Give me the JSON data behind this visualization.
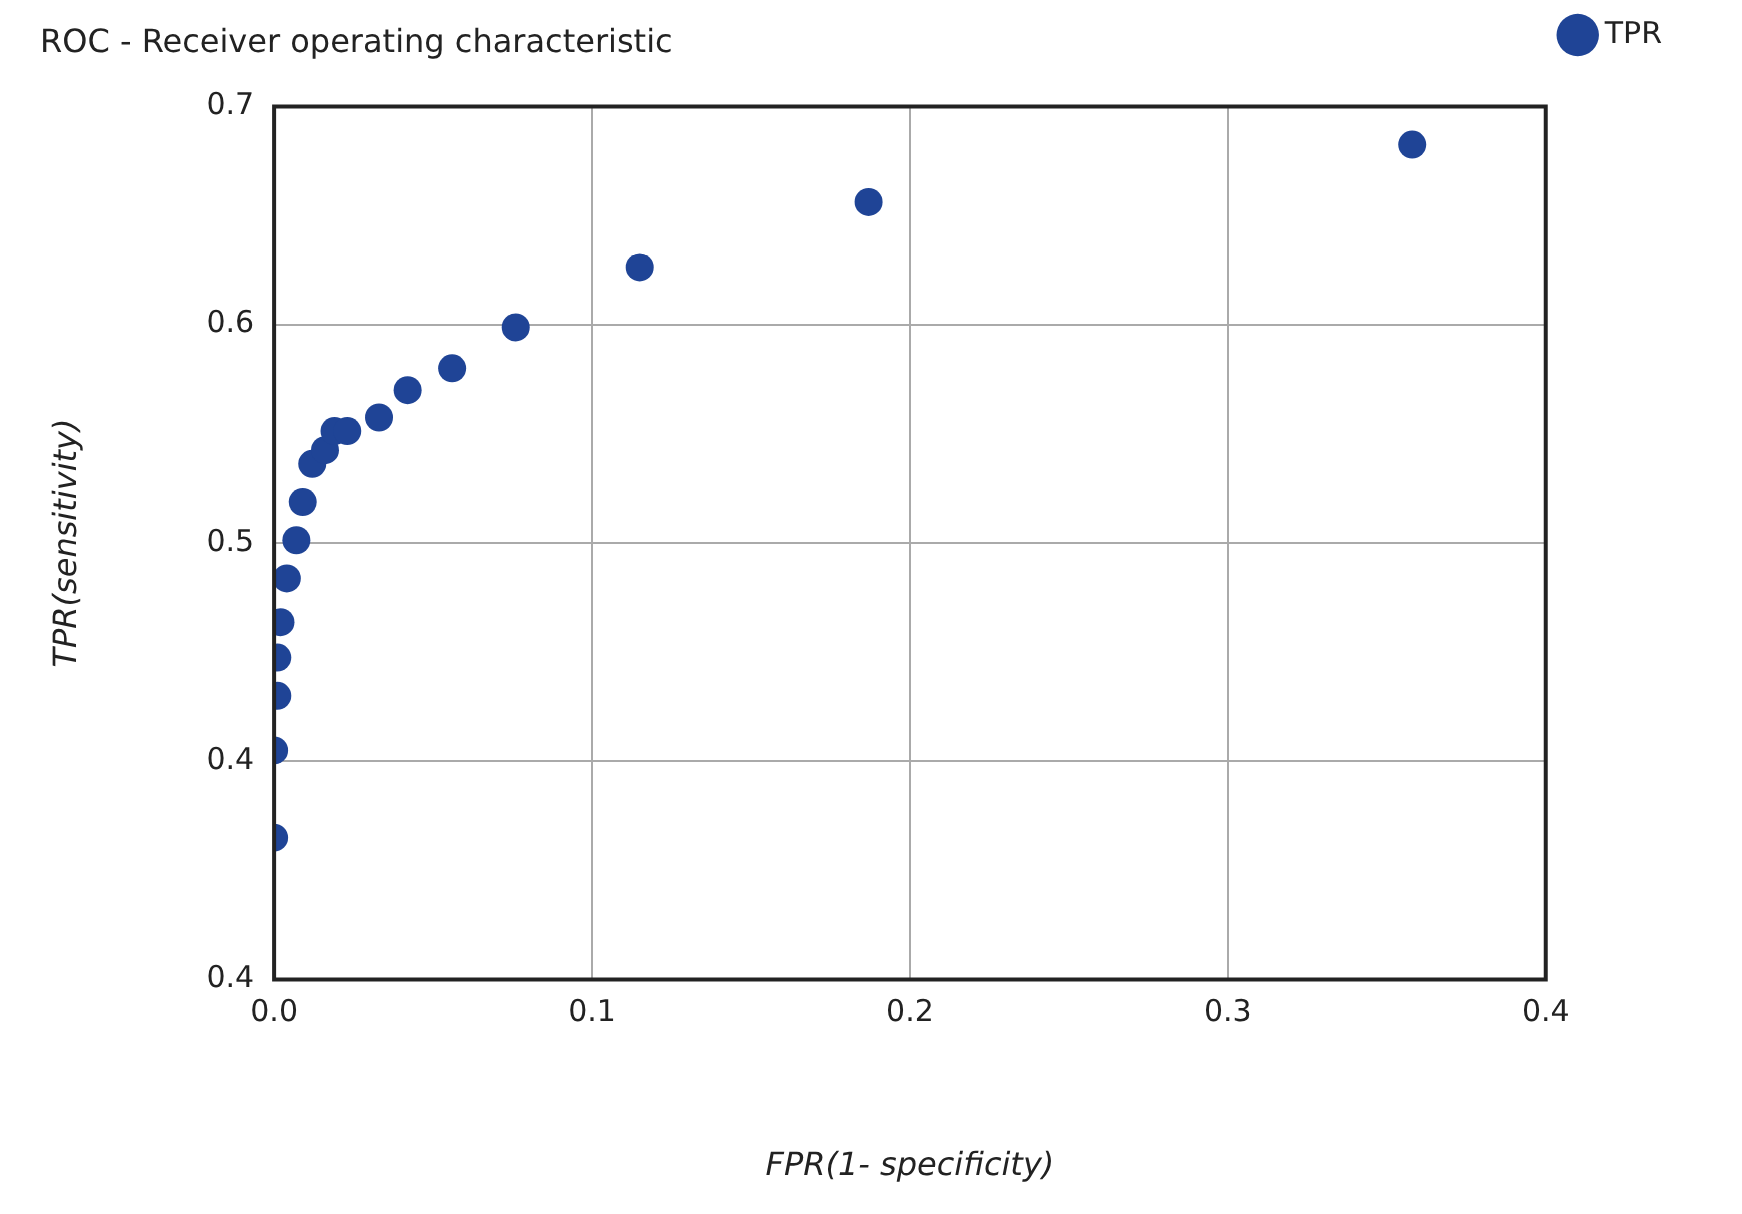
{
  "chart_data": {
    "type": "scatter",
    "title": "ROC - Receiver operating characteristic",
    "xlabel": "FPR(1- specificity)",
    "ylabel": "TPR(sensitivity)",
    "x": [
      0.0,
      0.0,
      0.001,
      0.001,
      0.002,
      0.004,
      0.007,
      0.009,
      0.012,
      0.016,
      0.019,
      0.023,
      0.033,
      0.042,
      0.056,
      0.076,
      0.115,
      0.187,
      0.358
    ],
    "series": [
      {
        "name": "TPR",
        "color": "#1f4496",
        "values": [
          0.412,
          0.444,
          0.464,
          0.478,
          0.491,
          0.507,
          0.521,
          0.535,
          0.549,
          0.554,
          0.561,
          0.561,
          0.566,
          0.576,
          0.584,
          0.599,
          0.621,
          0.645,
          0.666
        ]
      }
    ],
    "xlim": [
      0,
      0.4
    ],
    "xticks": [
      {
        "value": 0,
        "label": "0.0"
      },
      0.1,
      0.2,
      0.3,
      0.4
    ],
    "ylim": [
      0.36,
      0.68
    ],
    "yticks": [
      {
        "value": 0.36,
        "label": "0.4"
      },
      {
        "value": 0.44,
        "label": "0.4"
      },
      {
        "value": 0.52,
        "label": "0.5"
      },
      {
        "value": 0.6,
        "label": "0.6"
      },
      {
        "value": 0.68,
        "label": "0.7"
      }
    ],
    "grid": true,
    "legend": "top right",
    "marker": "circle"
  }
}
